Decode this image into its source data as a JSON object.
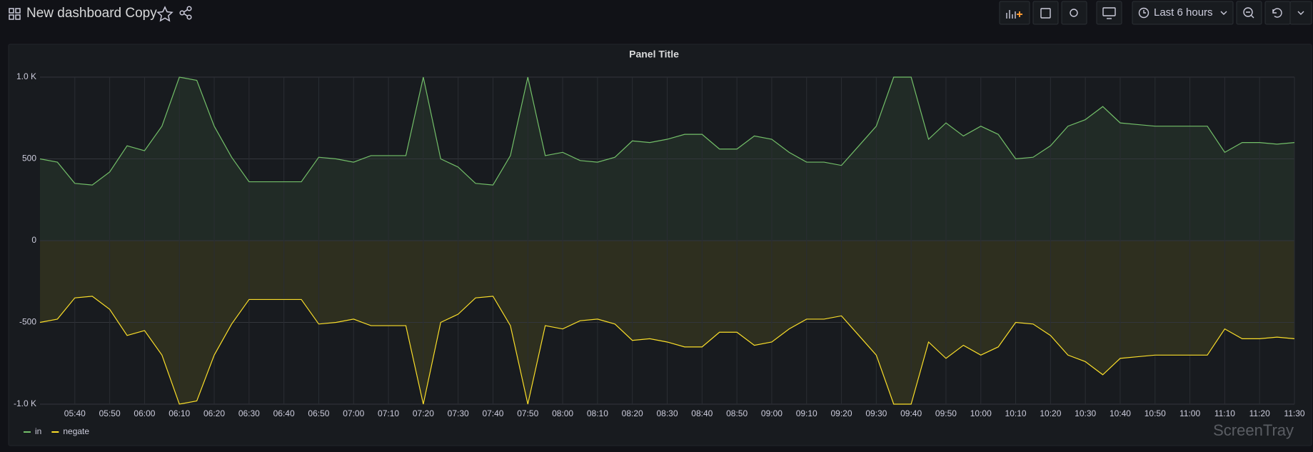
{
  "header": {
    "title": "New dashboard Copy"
  },
  "toolbar": {
    "time_range": "Last 6 hours"
  },
  "watermark": "ScreenTray",
  "chart_data": {
    "type": "line",
    "title": "Panel Title",
    "x": [
      330,
      335,
      340,
      345,
      350,
      355,
      360,
      365,
      370,
      375,
      380,
      385,
      390,
      395,
      400,
      405,
      410,
      415,
      420,
      425,
      430,
      435,
      440,
      445,
      450,
      455,
      460,
      465,
      470,
      475,
      480,
      485,
      490,
      495,
      500,
      505,
      510,
      515,
      520,
      525,
      530,
      535,
      540,
      545,
      550,
      555,
      560,
      565,
      570,
      575,
      580,
      585,
      590,
      595,
      600,
      605,
      610,
      615,
      620,
      625,
      630,
      635,
      640,
      645,
      650,
      655,
      660,
      665,
      670,
      675,
      680,
      685,
      690
    ],
    "series": [
      {
        "name": "in",
        "color": "#73bf69",
        "values": [
          500,
          480,
          350,
          340,
          420,
          580,
          550,
          700,
          1000,
          980,
          700,
          510,
          360,
          360,
          360,
          360,
          510,
          500,
          480,
          520,
          520,
          520,
          1000,
          500,
          450,
          350,
          340,
          520,
          1000,
          520,
          540,
          490,
          480,
          510,
          610,
          600,
          620,
          650,
          650,
          560,
          560,
          640,
          620,
          540,
          480,
          480,
          460,
          580,
          700,
          1000,
          1000,
          620,
          720,
          640,
          700,
          650,
          500,
          510,
          580,
          700,
          740,
          820,
          720,
          710,
          700,
          700,
          700,
          700,
          540,
          600,
          600,
          590,
          600
        ]
      },
      {
        "name": "negate",
        "color": "#fade2a",
        "values": [
          -500,
          -480,
          -350,
          -340,
          -420,
          -580,
          -550,
          -700,
          -1000,
          -980,
          -700,
          -510,
          -360,
          -360,
          -360,
          -360,
          -510,
          -500,
          -480,
          -520,
          -520,
          -520,
          -1000,
          -500,
          -450,
          -350,
          -340,
          -520,
          -1000,
          -520,
          -540,
          -490,
          -480,
          -510,
          -610,
          -600,
          -620,
          -650,
          -650,
          -560,
          -560,
          -640,
          -620,
          -540,
          -480,
          -480,
          -460,
          -580,
          -700,
          -1000,
          -1000,
          -620,
          -720,
          -640,
          -700,
          -650,
          -500,
          -510,
          -580,
          -700,
          -740,
          -820,
          -720,
          -710,
          -700,
          -700,
          -700,
          -700,
          -540,
          -600,
          -600,
          -590,
          -600
        ]
      }
    ],
    "xlim": [
      330,
      690
    ],
    "xticks": [
      {
        "value": 340,
        "label": "05:40"
      },
      {
        "value": 350,
        "label": "05:50"
      },
      {
        "value": 360,
        "label": "06:00"
      },
      {
        "value": 370,
        "label": "06:10"
      },
      {
        "value": 380,
        "label": "06:20"
      },
      {
        "value": 390,
        "label": "06:30"
      },
      {
        "value": 400,
        "label": "06:40"
      },
      {
        "value": 410,
        "label": "06:50"
      },
      {
        "value": 420,
        "label": "07:00"
      },
      {
        "value": 430,
        "label": "07:10"
      },
      {
        "value": 440,
        "label": "07:20"
      },
      {
        "value": 450,
        "label": "07:30"
      },
      {
        "value": 460,
        "label": "07:40"
      },
      {
        "value": 470,
        "label": "07:50"
      },
      {
        "value": 480,
        "label": "08:00"
      },
      {
        "value": 490,
        "label": "08:10"
      },
      {
        "value": 500,
        "label": "08:20"
      },
      {
        "value": 510,
        "label": "08:30"
      },
      {
        "value": 520,
        "label": "08:40"
      },
      {
        "value": 530,
        "label": "08:50"
      },
      {
        "value": 540,
        "label": "09:00"
      },
      {
        "value": 550,
        "label": "09:10"
      },
      {
        "value": 560,
        "label": "09:20"
      },
      {
        "value": 570,
        "label": "09:30"
      },
      {
        "value": 580,
        "label": "09:40"
      },
      {
        "value": 590,
        "label": "09:50"
      },
      {
        "value": 600,
        "label": "10:00"
      },
      {
        "value": 610,
        "label": "10:10"
      },
      {
        "value": 620,
        "label": "10:20"
      },
      {
        "value": 630,
        "label": "10:30"
      },
      {
        "value": 640,
        "label": "10:40"
      },
      {
        "value": 650,
        "label": "10:50"
      },
      {
        "value": 660,
        "label": "11:00"
      },
      {
        "value": 670,
        "label": "11:10"
      },
      {
        "value": 680,
        "label": "11:20"
      },
      {
        "value": 690,
        "label": "11:30"
      }
    ],
    "ylim": [
      -1000,
      1000
    ],
    "yticks": [
      {
        "value": -1000,
        "label": "-1.0 K"
      },
      {
        "value": -500,
        "label": "-500"
      },
      0,
      500,
      {
        "value": 1000,
        "label": "1.0 K"
      }
    ],
    "grid": true
  }
}
